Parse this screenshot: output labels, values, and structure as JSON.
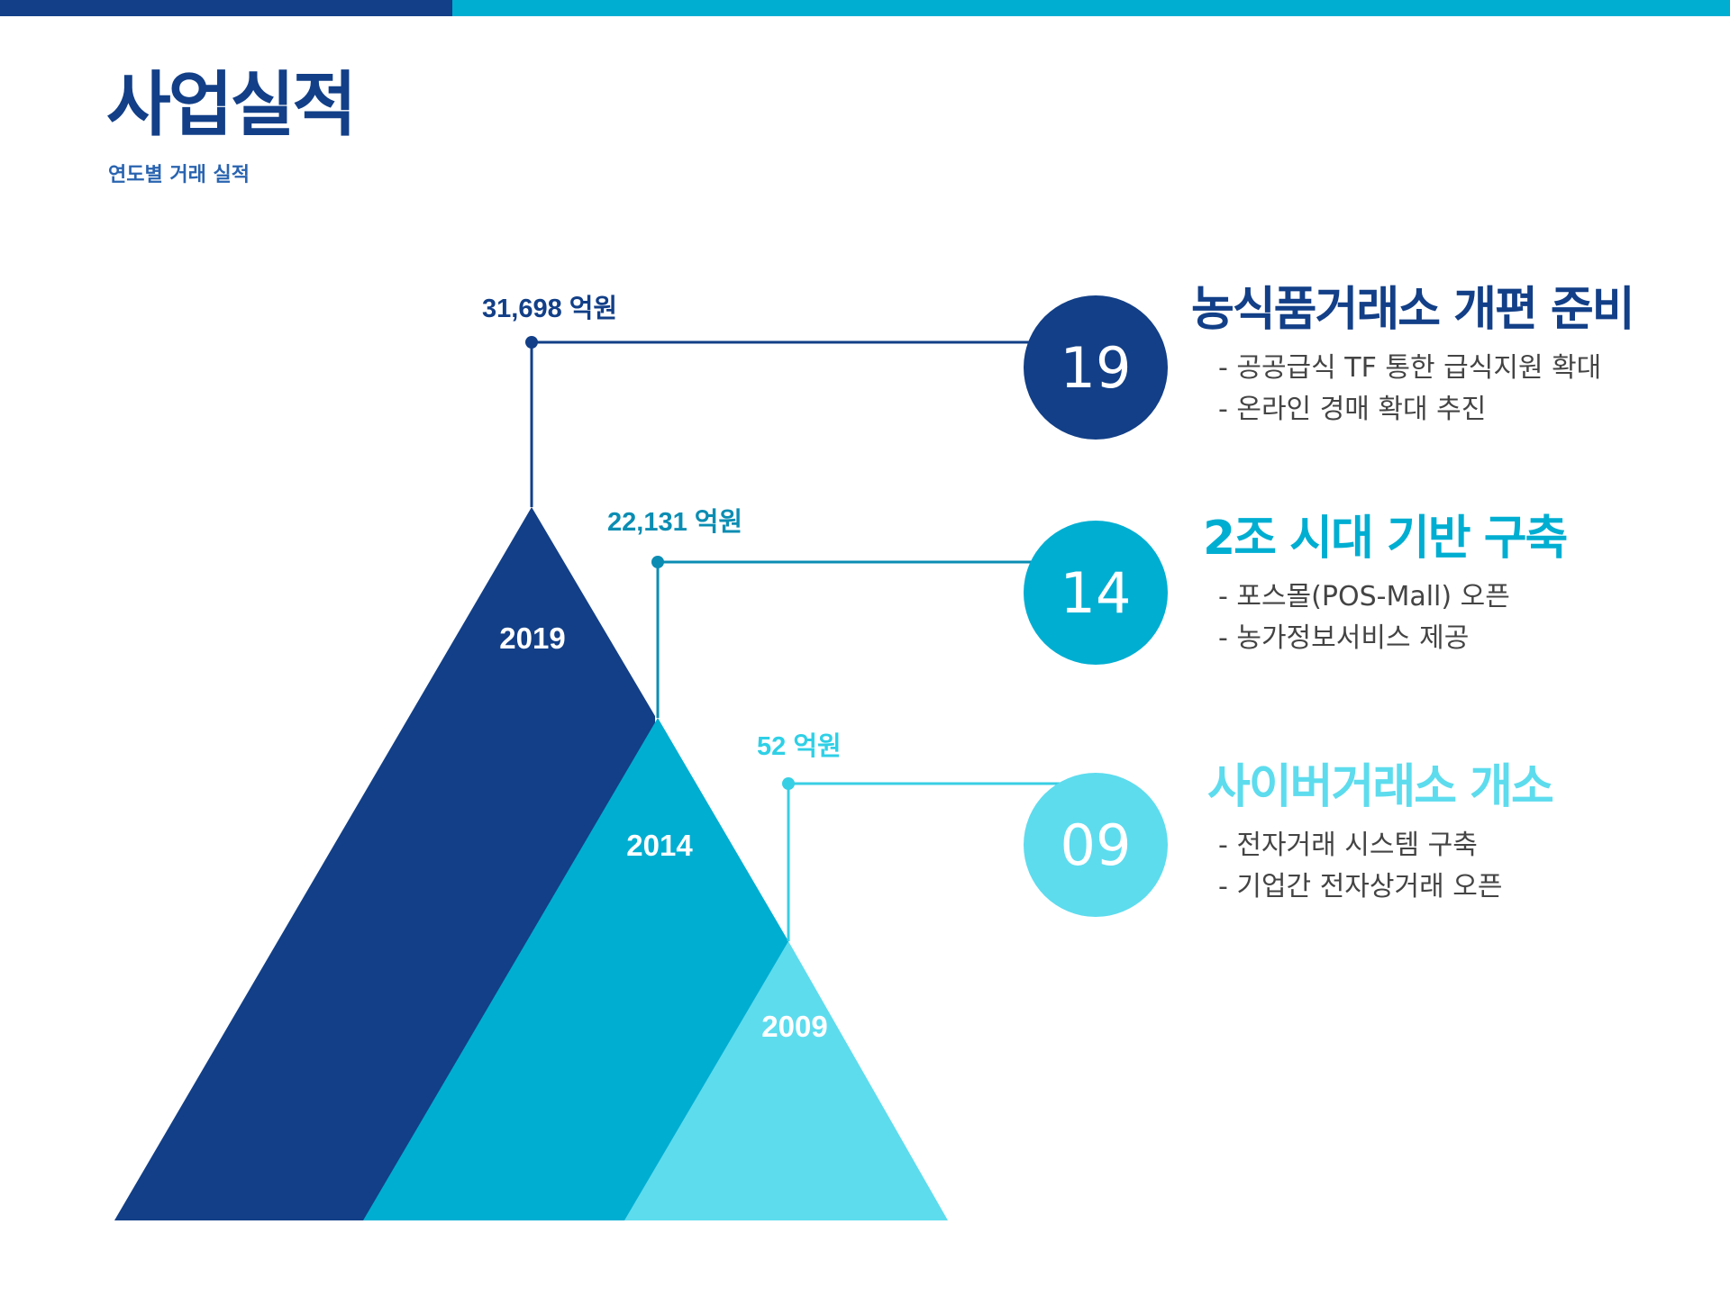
{
  "header": {
    "title": "사업실적",
    "subtitle": "연도별 거래 실적"
  },
  "colors": {
    "navy": "#123f87",
    "blue": "#00aed2",
    "cyan": "#5ddcee",
    "text": "#444444"
  },
  "diagram": {
    "stages": [
      {
        "year": "2019",
        "amount": "31,698 억원",
        "badge": "19",
        "color": "#123f87",
        "heading": "농식품거래소 개편 준비",
        "bullets": [
          "- 공공급식 TF 통한 급식지원 확대",
          "- 온라인 경매 확대 추진"
        ]
      },
      {
        "year": "2014",
        "amount": "22,131 억원",
        "badge": "14",
        "color": "#00aed2",
        "heading": "2조 시대 기반 구축",
        "bullets": [
          "- 포스몰(POS-Mall) 오픈",
          "- 농가정보서비스 제공"
        ]
      },
      {
        "year": "2009",
        "amount": "52 억원",
        "badge": "09",
        "color": "#5ddcee",
        "heading": "사이버거래소 개소",
        "bullets": [
          "- 전자거래 시스템 구축",
          "- 기업간 전자상거래 오픈"
        ]
      }
    ]
  }
}
